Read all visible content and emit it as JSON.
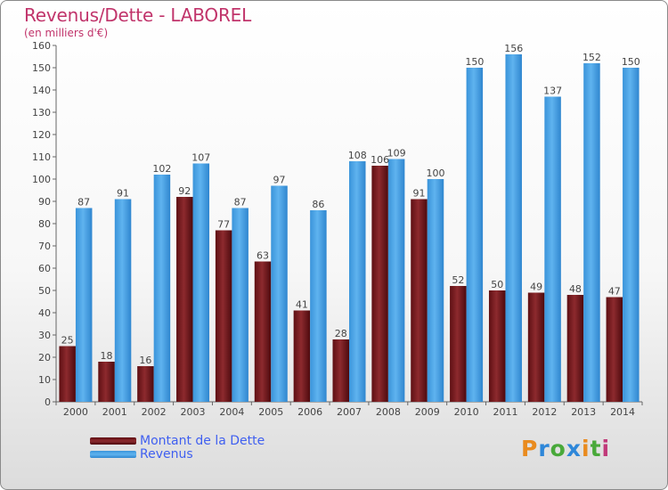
{
  "title": "Revenus/Dette - LABOREL",
  "subtitle": "(en milliers d'€)",
  "colors": {
    "dette": "#7a1c20",
    "revenus": "#3f9fe4",
    "title": "#c1346b",
    "legend_text": "#3f5ff0"
  },
  "brand": {
    "letters": [
      "P",
      "r",
      "o",
      "x",
      "i",
      "t",
      "i"
    ],
    "colors": [
      "#e98b1f",
      "#2e87d9",
      "#49a93a",
      "#2e87d9",
      "#e98b1f",
      "#49a93a",
      "#c13a7a"
    ]
  },
  "chart_data": {
    "type": "bar",
    "title": "Revenus/Dette - LABOREL",
    "subtitle": "(en milliers d'€)",
    "categories": [
      "2000",
      "2001",
      "2002",
      "2003",
      "2004",
      "2005",
      "2006",
      "2007",
      "2008",
      "2009",
      "2010",
      "2011",
      "2012",
      "2013",
      "2014"
    ],
    "series": [
      {
        "name": "Montant de la Dette",
        "values": [
          25,
          18,
          16,
          92,
          77,
          63,
          41,
          28,
          106,
          91,
          52,
          50,
          49,
          48,
          47
        ]
      },
      {
        "name": "Revenus",
        "values": [
          87,
          91,
          102,
          107,
          87,
          97,
          86,
          108,
          109,
          100,
          150,
          156,
          137,
          152,
          150
        ]
      }
    ],
    "ylim": [
      0,
      160
    ],
    "yticks": [
      0,
      10,
      20,
      30,
      40,
      50,
      60,
      70,
      80,
      90,
      100,
      110,
      120,
      130,
      140,
      150,
      160
    ],
    "grid": false,
    "legend": "bottom-left"
  }
}
